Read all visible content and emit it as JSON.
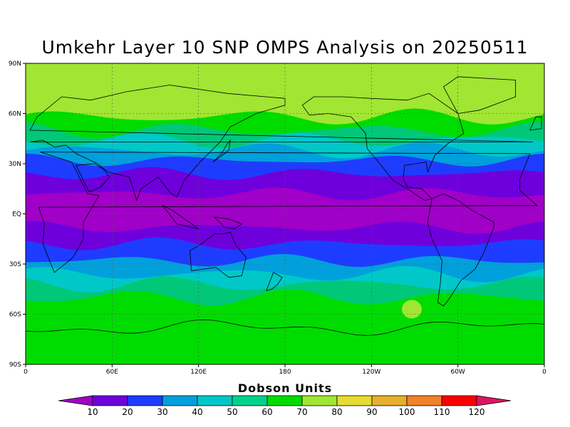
{
  "title": "Umkehr Layer 10 SNP OMPS Analysis on 20250511",
  "map": {
    "lat_ticks": [
      "90N",
      "60N",
      "30N",
      "EQ",
      "30S",
      "60S",
      "90S"
    ],
    "lon_ticks": [
      "0",
      "60E",
      "120E",
      "180",
      "120W",
      "60W",
      "0"
    ],
    "band_colors_north_to_south": [
      "#a0e632",
      "#00dc00",
      "#00c878",
      "#00c8c8",
      "#00a0dc",
      "#1e3cff",
      "#6e00dc",
      "#a000c8",
      "#6e00dc",
      "#1e3cff",
      "#00a0dc",
      "#00c8c8",
      "#00c878",
      "#00dc00"
    ]
  },
  "colorbar": {
    "title": "Dobson Units",
    "labels": [
      "10",
      "20",
      "30",
      "40",
      "50",
      "60",
      "70",
      "80",
      "90",
      "100",
      "110",
      "120"
    ],
    "colors": [
      "#a000c8",
      "#6e00dc",
      "#1e3cff",
      "#00a0dc",
      "#00c8c8",
      "#00d28c",
      "#00dc00",
      "#a0e632",
      "#e6dc32",
      "#e6af2d",
      "#f08228",
      "#fa0000",
      "#dc1464"
    ]
  }
}
